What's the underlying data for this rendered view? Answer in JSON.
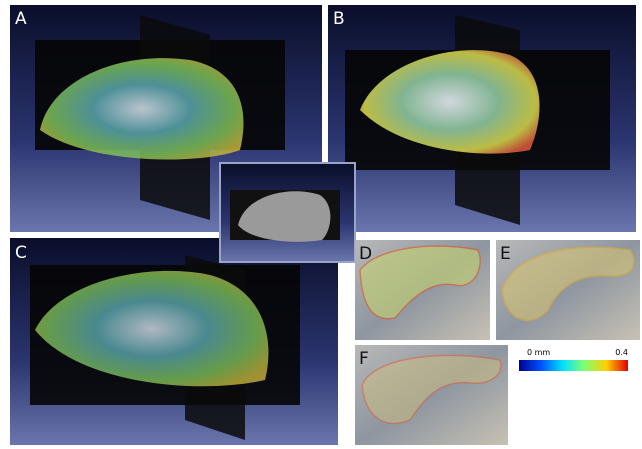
{
  "panels": {
    "a": "A",
    "b": "B",
    "c": "C",
    "d": "D",
    "e": "E",
    "f": "F"
  },
  "colorbar": {
    "min_label": "0 mm",
    "max_label": "0.4"
  }
}
